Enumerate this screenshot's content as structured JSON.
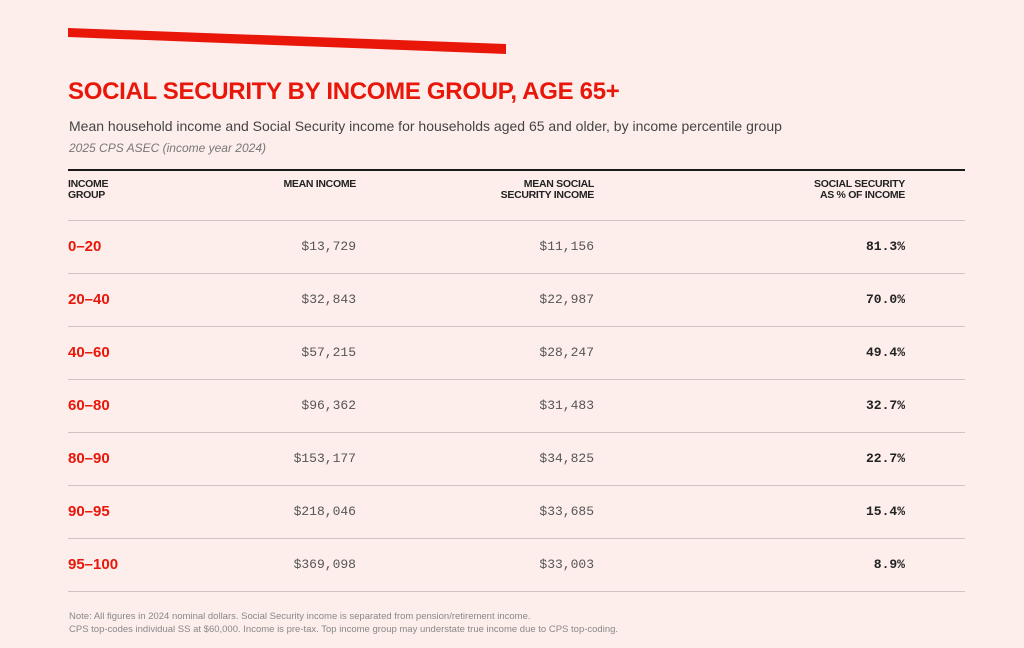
{
  "accent_color": "#e8170a",
  "title": "SOCIAL SECURITY BY INCOME GROUP, AGE 65+",
  "subtitle": "Mean household income and Social Security income for households aged 65 and older, by income percentile group",
  "source": "2025 CPS ASEC (income year 2024)",
  "table": {
    "headers": [
      "INCOME\nGROUP",
      "MEAN INCOME",
      "MEAN SOCIAL\nSECURITY INCOME",
      "SOCIAL SECURITY\nAS % OF INCOME"
    ],
    "rows": [
      [
        "0–20",
        "$13,729",
        "$11,156",
        "81.3%"
      ],
      [
        "20–40",
        "$32,843",
        "$22,987",
        "70.0%"
      ],
      [
        "40–60",
        "$57,215",
        "$28,247",
        "49.4%"
      ],
      [
        "60–80",
        "$96,362",
        "$31,483",
        "32.7%"
      ],
      [
        "80–90",
        "$153,177",
        "$34,825",
        "22.7%"
      ],
      [
        "90–95",
        "$218,046",
        "$33,685",
        "15.4%"
      ],
      [
        "95–100",
        "$369,098",
        "$33,003",
        "8.9%"
      ]
    ]
  },
  "notes": [
    "Note: All figures in 2024 nominal dollars. Social Security income is separated from pension/retirement income.",
    "CPS top-codes individual SS at $60,000. Income is pre-tax. Top income group may understate true income due to CPS top-coding."
  ]
}
